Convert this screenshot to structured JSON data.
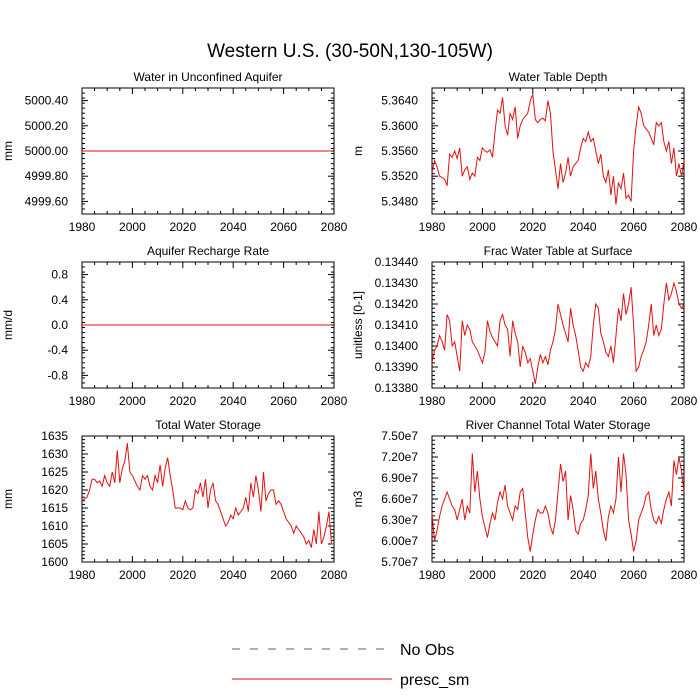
{
  "figure": {
    "title": "Western U.S. (30-50N,130-105W)",
    "legend": [
      {
        "label": "No Obs",
        "style": "dashed",
        "color": "#5a5aa0"
      },
      {
        "label": "presc_sm",
        "style": "solid",
        "color": "#e01010"
      }
    ]
  },
  "chart_data": [
    {
      "type": "line",
      "title": "Water in Unconfined Aquifer",
      "ylabel": "mm",
      "xlim": [
        1980,
        2080
      ],
      "ylim": [
        4999.5,
        5000.5
      ],
      "xticks": [
        1980,
        2000,
        2020,
        2040,
        2060,
        2080
      ],
      "yticks": [
        4999.6,
        4999.8,
        5000.0,
        5000.2,
        5000.4
      ],
      "ytick_labels": [
        "4999.60",
        "4999.80",
        "5000.00",
        "5000.20",
        "5000.40"
      ],
      "series": [
        {
          "name": "presc_sm",
          "color": "#e01010",
          "x_start": 1980,
          "x_step": 1,
          "values": [
            5000,
            5000,
            5000,
            5000,
            5000,
            5000,
            5000,
            5000,
            5000,
            5000,
            5000,
            5000,
            5000,
            5000,
            5000,
            5000,
            5000,
            5000,
            5000,
            5000,
            5000,
            5000,
            5000,
            5000,
            5000,
            5000,
            5000,
            5000,
            5000,
            5000,
            5000,
            5000,
            5000,
            5000,
            5000,
            5000,
            5000,
            5000,
            5000,
            5000,
            5000,
            5000,
            5000,
            5000,
            5000,
            5000,
            5000,
            5000,
            5000,
            5000,
            5000,
            5000,
            5000,
            5000,
            5000,
            5000,
            5000,
            5000,
            5000,
            5000,
            5000,
            5000,
            5000,
            5000,
            5000,
            5000,
            5000,
            5000,
            5000,
            5000,
            5000,
            5000,
            5000,
            5000,
            5000,
            5000,
            5000,
            5000,
            5000,
            5000,
            5000,
            5000,
            5000,
            5000,
            5000,
            5000,
            5000,
            5000,
            5000,
            5000,
            5000,
            5000,
            5000,
            5000,
            5000,
            5000,
            5000,
            5000,
            5000,
            5000
          ]
        }
      ]
    },
    {
      "type": "line",
      "title": "Water Table Depth",
      "ylabel": "m",
      "xlim": [
        1980,
        2080
      ],
      "ylim": [
        5.346,
        5.366
      ],
      "xticks": [
        1980,
        2000,
        2020,
        2040,
        2060,
        2080
      ],
      "yticks": [
        5.348,
        5.352,
        5.356,
        5.36,
        5.364
      ],
      "ytick_labels": [
        "5.3480",
        "5.3520",
        "5.3560",
        "5.3600",
        "5.3640"
      ],
      "series": [
        {
          "name": "presc_sm",
          "color": "#e01010",
          "x_start": 1980,
          "x_step": 1,
          "values": [
            5.3525,
            5.3545,
            5.3535,
            5.352,
            5.3518,
            5.3515,
            5.3505,
            5.3555,
            5.355,
            5.356,
            5.3548,
            5.3565,
            5.352,
            5.353,
            5.3535,
            5.3515,
            5.3525,
            5.352,
            5.355,
            5.3545,
            5.3565,
            5.356,
            5.3558,
            5.3562,
            5.355,
            5.359,
            5.3625,
            5.362,
            5.3645,
            5.36,
            5.3585,
            5.362,
            5.361,
            5.363,
            5.358,
            5.36,
            5.361,
            5.3615,
            5.362,
            5.364,
            5.365,
            5.361,
            5.3605,
            5.361,
            5.3612,
            5.3608,
            5.364,
            5.362,
            5.356,
            5.353,
            5.35,
            5.354,
            5.351,
            5.3525,
            5.355,
            5.352,
            5.3535,
            5.354,
            5.3545,
            5.3565,
            5.358,
            5.3575,
            5.359,
            5.3575,
            5.358,
            5.356,
            5.354,
            5.3555,
            5.352,
            5.351,
            5.353,
            5.349,
            5.352,
            5.3475,
            5.351,
            5.35,
            5.3525,
            5.3485,
            5.349,
            5.348,
            5.356,
            5.36,
            5.363,
            5.362,
            5.36,
            5.3595,
            5.359,
            5.358,
            5.357,
            5.3605,
            5.36,
            5.3605,
            5.3575,
            5.356,
            5.3575,
            5.354,
            5.3565,
            5.352,
            5.354,
            5.352,
            5.3545
          ]
        }
      ]
    },
    {
      "type": "line",
      "title": "Aquifer Recharge Rate",
      "ylabel": "mm/d",
      "xlim": [
        1980,
        2080
      ],
      "ylim": [
        -1.0,
        1.0
      ],
      "xticks": [
        1980,
        2000,
        2020,
        2040,
        2060,
        2080
      ],
      "yticks": [
        -0.8,
        -0.4,
        0.0,
        0.4,
        0.8
      ],
      "ytick_labels": [
        "-0.8",
        "-0.4",
        "0.0",
        "0.4",
        "0.8"
      ],
      "series": [
        {
          "name": "presc_sm",
          "color": "#e01010",
          "x_start": 1980,
          "x_step": 1,
          "values": [
            0,
            0,
            0,
            0,
            0,
            0,
            0,
            0,
            0,
            0,
            0,
            0,
            0,
            0,
            0,
            0,
            0,
            0,
            0,
            0,
            0,
            0,
            0,
            0,
            0,
            0,
            0,
            0,
            0,
            0,
            0,
            0,
            0,
            0,
            0,
            0,
            0,
            0,
            0,
            0,
            0,
            0,
            0,
            0,
            0,
            0,
            0,
            0,
            0,
            0,
            0,
            0,
            0,
            0,
            0,
            0,
            0,
            0,
            0,
            0,
            0,
            0,
            0,
            0,
            0,
            0,
            0,
            0,
            0,
            0,
            0,
            0,
            0,
            0,
            0,
            0,
            0,
            0,
            0,
            0,
            0,
            0,
            0,
            0,
            0,
            0,
            0,
            0,
            0,
            0,
            0,
            0,
            0,
            0,
            0,
            0,
            0,
            0,
            0,
            0
          ]
        }
      ]
    },
    {
      "type": "line",
      "title": "Frac Water Table at Surface",
      "ylabel": "unitless [0-1]",
      "xlim": [
        1980,
        2080
      ],
      "ylim": [
        0.1338,
        0.1344
      ],
      "xticks": [
        1980,
        2000,
        2020,
        2040,
        2060,
        2080
      ],
      "yticks": [
        0.1338,
        0.1339,
        0.134,
        0.1341,
        0.1342,
        0.1343,
        0.1344
      ],
      "ytick_labels": [
        "0.13380",
        "0.13390",
        "0.13400",
        "0.13410",
        "0.13420",
        "0.13430",
        "0.13440"
      ],
      "series": [
        {
          "name": "presc_sm",
          "color": "#e01010",
          "x_start": 1980,
          "x_step": 1,
          "values": [
            0.13392,
            0.13398,
            0.134,
            0.13405,
            0.13402,
            0.13398,
            0.13415,
            0.13412,
            0.134,
            0.13402,
            0.13395,
            0.13388,
            0.13412,
            0.13405,
            0.1341,
            0.13408,
            0.13402,
            0.134,
            0.13398,
            0.13395,
            0.13392,
            0.13397,
            0.13412,
            0.13407,
            0.13404,
            0.13402,
            0.134,
            0.13412,
            0.13415,
            0.1341,
            0.13408,
            0.13395,
            0.13412,
            0.13406,
            0.13402,
            0.1339,
            0.134,
            0.13397,
            0.13392,
            0.13394,
            0.13388,
            0.13382,
            0.1339,
            0.13396,
            0.13392,
            0.13395,
            0.13391,
            0.13398,
            0.13402,
            0.13408,
            0.1342,
            0.13415,
            0.1341,
            0.13406,
            0.13402,
            0.13418,
            0.1341,
            0.13405,
            0.13398,
            0.1339,
            0.13388,
            0.13392,
            0.1339,
            0.13395,
            0.1341,
            0.1342,
            0.13418,
            0.13406,
            0.13402,
            0.13397,
            0.13395,
            0.134,
            0.13392,
            0.13405,
            0.13418,
            0.13412,
            0.13425,
            0.13415,
            0.1342,
            0.13428,
            0.1341,
            0.13388,
            0.1339,
            0.13395,
            0.13398,
            0.13402,
            0.1341,
            0.1342,
            0.13405,
            0.1341,
            0.13405,
            0.13408,
            0.1342,
            0.1343,
            0.13422,
            0.13425,
            0.1343,
            0.13426,
            0.1342,
            0.13418,
            0.1342
          ]
        }
      ]
    },
    {
      "type": "line",
      "title": "Total Water Storage",
      "ylabel": "mm",
      "xlim": [
        1980,
        2080
      ],
      "ylim": [
        1600,
        1635
      ],
      "xticks": [
        1980,
        2000,
        2020,
        2040,
        2060,
        2080
      ],
      "yticks": [
        1600,
        1605,
        1610,
        1615,
        1620,
        1625,
        1630,
        1635
      ],
      "ytick_labels": [
        "1600",
        "1605",
        "1610",
        "1615",
        "1620",
        "1625",
        "1630",
        "1635"
      ],
      "series": [
        {
          "name": "presc_sm",
          "color": "#e01010",
          "x_start": 1980,
          "x_step": 1,
          "values": [
            1617,
            1617.5,
            1618,
            1620,
            1623,
            1623,
            1622,
            1622.5,
            1621,
            1624,
            1622,
            1621,
            1625,
            1622,
            1631,
            1622,
            1626,
            1628,
            1633,
            1625,
            1624,
            1622.5,
            1621,
            1620,
            1624,
            1623,
            1624,
            1621,
            1620,
            1624,
            1622,
            1627,
            1621,
            1626,
            1629,
            1624,
            1620,
            1615,
            1615,
            1615,
            1614.5,
            1617,
            1615,
            1614.5,
            1615,
            1620,
            1619,
            1622,
            1618,
            1623,
            1615,
            1620,
            1622,
            1617,
            1616,
            1614,
            1612,
            1610,
            1611,
            1613,
            1612,
            1615,
            1613,
            1614,
            1615,
            1618,
            1614,
            1622,
            1618,
            1624,
            1620,
            1614,
            1625,
            1617,
            1619,
            1620,
            1620,
            1616,
            1617,
            1616,
            1614,
            1612,
            1611,
            1610,
            1608,
            1610,
            1609,
            1608,
            1607,
            1605,
            1606,
            1604,
            1609,
            1605,
            1614,
            1605,
            1607,
            1610,
            1614,
            1605,
            1605
          ]
        }
      ]
    },
    {
      "type": "line",
      "title": "River Channel Total Water Storage",
      "ylabel": "m3",
      "xlim": [
        1980,
        2080
      ],
      "ylim": [
        57000000,
        75000000
      ],
      "xticks": [
        1980,
        2000,
        2020,
        2040,
        2060,
        2080
      ],
      "yticks": [
        57000000,
        60000000,
        63000000,
        66000000,
        69000000,
        72000000,
        75000000
      ],
      "ytick_labels": [
        "5.70e7",
        "6.00e7",
        "6.30e7",
        "6.60e7",
        "6.90e7",
        "7.20e7",
        "7.50e7"
      ],
      "series": [
        {
          "name": "presc_sm",
          "color": "#e01010",
          "x_start": 1980,
          "x_step": 1,
          "values": [
            64000000,
            60000000,
            61500000,
            63500000,
            65000000,
            66000000,
            67000000,
            66000000,
            65000000,
            64500000,
            63000000,
            64500000,
            66000000,
            63000000,
            65000000,
            64000000,
            72500000,
            67000000,
            70000000,
            66000000,
            63500000,
            62000000,
            60500000,
            62500000,
            64000000,
            63000000,
            65500000,
            67000000,
            66000000,
            68000000,
            65000000,
            64000000,
            63000000,
            65000000,
            64500000,
            67000000,
            67500000,
            64000000,
            60500000,
            58500000,
            61000000,
            63000000,
            64500000,
            64000000,
            64000000,
            65000000,
            64000000,
            62000000,
            61000000,
            63000000,
            67000000,
            71000000,
            68500000,
            70000000,
            63000000,
            66500000,
            64500000,
            61500000,
            61000000,
            62500000,
            63000000,
            64500000,
            66500000,
            72500000,
            67500000,
            70000000,
            66000000,
            64000000,
            61500000,
            60000000,
            63500000,
            65000000,
            64000000,
            66000000,
            72000000,
            67000000,
            72500000,
            69500000,
            63000000,
            61000000,
            58500000,
            60000000,
            63000000,
            64000000,
            65000000,
            66500000,
            67000000,
            64500000,
            63000000,
            62500000,
            63500000,
            62500000,
            64500000,
            66000000,
            67000000,
            65000000,
            71500000,
            69500000,
            72000000,
            70000000,
            67000000
          ]
        }
      ]
    }
  ]
}
